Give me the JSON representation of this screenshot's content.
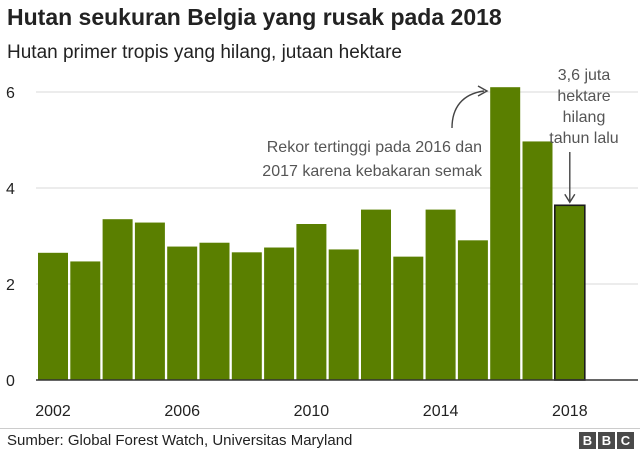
{
  "header": {
    "title": "Hutan seukuran Belgia yang rusak pada 2018",
    "subtitle": "Hutan primer tropis yang hilang, jutaan hektare"
  },
  "footer": {
    "source": "Sumber: Global Forest Watch, Universitas Maryland",
    "logo": [
      "B",
      "B",
      "C"
    ]
  },
  "colors": {
    "bar": "#5a7f00",
    "highlight_outline": "#1a1a1a",
    "grid": "#d9d9d9",
    "axis": "#333333",
    "annotation_text": "#555555"
  },
  "chart_data": {
    "type": "bar",
    "categories": [
      "2002",
      "2003",
      "2004",
      "2005",
      "2006",
      "2007",
      "2008",
      "2009",
      "2010",
      "2011",
      "2012",
      "2013",
      "2014",
      "2015",
      "2016",
      "2017",
      "2018"
    ],
    "values": [
      2.65,
      2.47,
      3.35,
      3.28,
      2.78,
      2.86,
      2.66,
      2.76,
      3.25,
      2.72,
      3.55,
      2.57,
      3.55,
      2.91,
      6.1,
      4.97,
      3.64
    ],
    "highlight_index": 16,
    "ylim": [
      0,
      6.5
    ],
    "yticks": [
      0,
      2,
      4,
      6
    ],
    "xtick_labels": [
      "2002",
      "2006",
      "2010",
      "2014",
      "2018"
    ],
    "grid": true,
    "annotations": [
      {
        "text": [
          "Rekor tertinggi pada 2016 dan",
          "2017 karena kebakaran semak"
        ],
        "target": "2016"
      },
      {
        "text": [
          "3,6 juta",
          "hektare",
          "hilang",
          "tahun lalu"
        ],
        "target": "2018"
      }
    ]
  }
}
